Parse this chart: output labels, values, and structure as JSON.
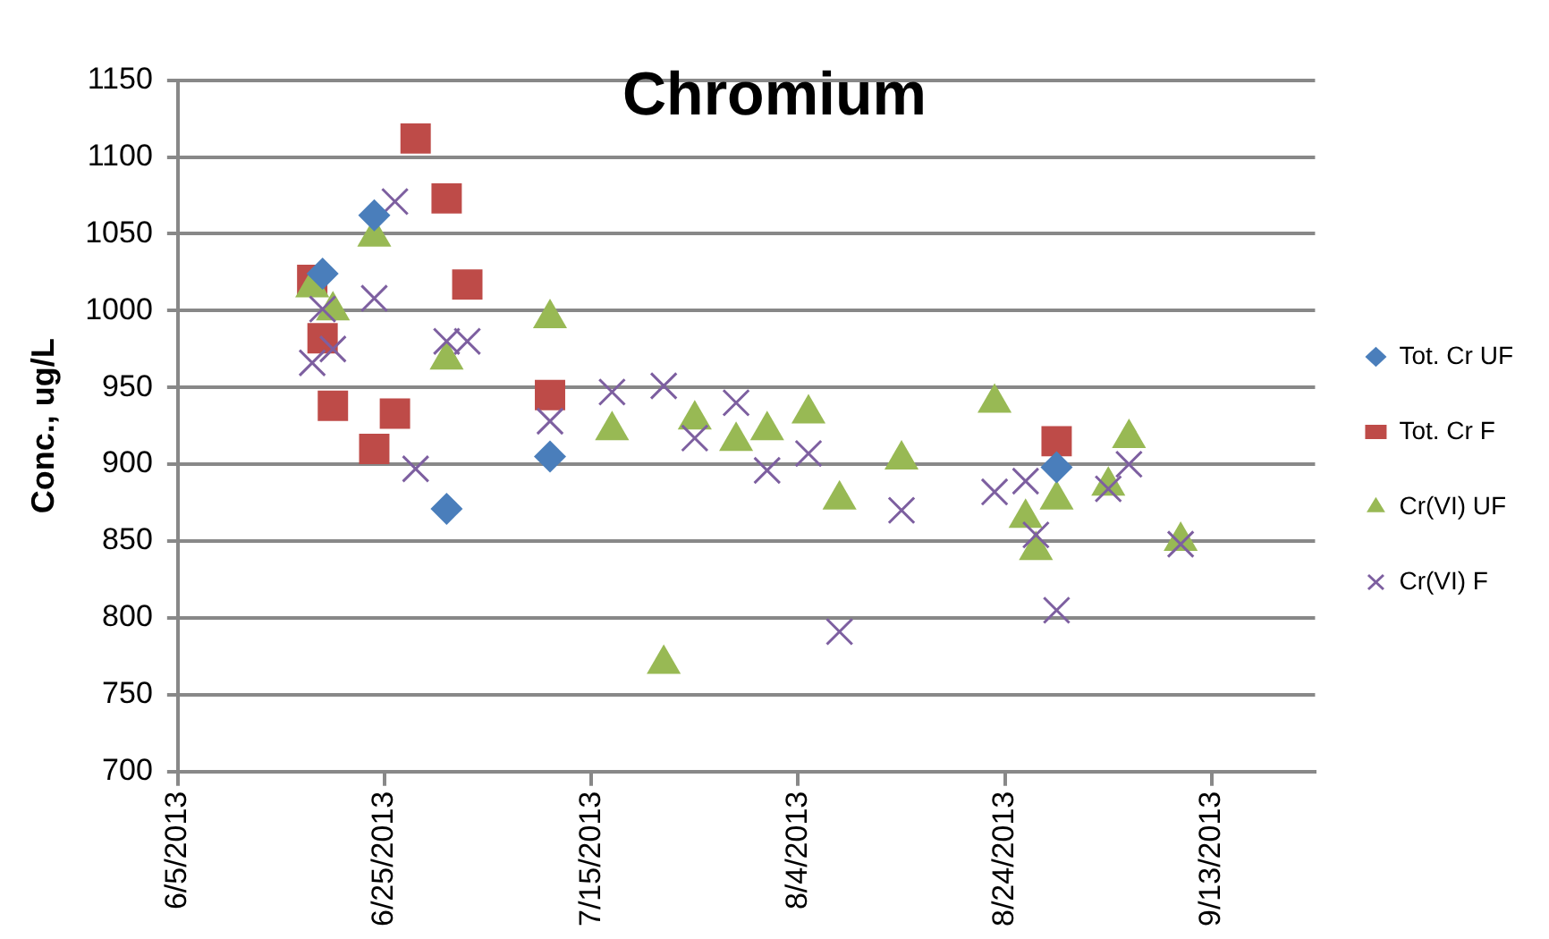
{
  "chart_data": {
    "type": "scatter",
    "title": "Chromium",
    "ylabel": "Conc., ug/L",
    "xlim": [
      "2013-06-05",
      "2013-09-23"
    ],
    "xticks": [
      {
        "value": "2013-06-05",
        "label": "6/5/2013"
      },
      {
        "value": "2013-06-25",
        "label": "6/25/2013"
      },
      {
        "value": "2013-07-15",
        "label": "7/15/2013"
      },
      {
        "value": "2013-08-04",
        "label": "8/4/2013"
      },
      {
        "value": "2013-08-24",
        "label": "8/24/2013"
      },
      {
        "value": "2013-09-13",
        "label": "9/13/2013"
      }
    ],
    "ylim": [
      700,
      1150
    ],
    "yticks": [
      700,
      750,
      800,
      850,
      900,
      950,
      1000,
      1050,
      1100,
      1150
    ],
    "grid": "y",
    "legend": "right",
    "series": [
      {
        "name": "Tot. Cr UF",
        "color": "#4a7ebb",
        "marker": "diamond",
        "x": [
          "2013-06-19",
          "2013-06-24",
          "2013-07-01",
          "2013-07-11",
          "2013-08-29"
        ],
        "values": [
          1024,
          1062,
          871,
          905,
          898
        ]
      },
      {
        "name": "Tot. Cr F",
        "color": "#be4b48",
        "marker": "square",
        "x": [
          "2013-06-18",
          "2013-06-19",
          "2013-06-20",
          "2013-06-24",
          "2013-06-26",
          "2013-06-28",
          "2013-07-01",
          "2013-07-03",
          "2013-07-11",
          "2013-08-29"
        ],
        "values": [
          1020,
          982,
          938,
          910,
          933,
          1112,
          1073,
          1017,
          945,
          915
        ]
      },
      {
        "name": "Cr(VI) UF",
        "color": "#98b954",
        "marker": "triangle",
        "x": [
          "2013-06-18",
          "2013-06-20",
          "2013-06-24",
          "2013-07-01",
          "2013-07-11",
          "2013-07-17",
          "2013-07-22",
          "2013-07-25",
          "2013-07-29",
          "2013-08-01",
          "2013-08-05",
          "2013-08-08",
          "2013-08-14",
          "2013-08-23",
          "2013-08-26",
          "2013-08-27",
          "2013-08-29",
          "2013-09-03",
          "2013-09-05",
          "2013-09-10"
        ],
        "values": [
          1015,
          1000,
          1048,
          968,
          995,
          922,
          770,
          929,
          915,
          922,
          933,
          877,
          903,
          940,
          865,
          844,
          877,
          886,
          917,
          850
        ]
      },
      {
        "name": "Cr(VI) F",
        "color": "#7d5fa0",
        "marker": "cross",
        "x": [
          "2013-06-18",
          "2013-06-19",
          "2013-06-20",
          "2013-06-24",
          "2013-06-26",
          "2013-06-28",
          "2013-07-01",
          "2013-07-03",
          "2013-07-11",
          "2013-07-17",
          "2013-07-22",
          "2013-07-25",
          "2013-07-29",
          "2013-08-01",
          "2013-08-05",
          "2013-08-08",
          "2013-08-14",
          "2013-08-23",
          "2013-08-26",
          "2013-08-27",
          "2013-08-29",
          "2013-09-03",
          "2013-09-05",
          "2013-09-10"
        ],
        "values": [
          966,
          1001,
          975,
          1008,
          1071,
          897,
          980,
          980,
          928,
          947,
          951,
          917,
          940,
          896,
          907,
          791,
          870,
          882,
          889,
          854,
          805,
          884,
          900,
          848
        ]
      }
    ]
  }
}
